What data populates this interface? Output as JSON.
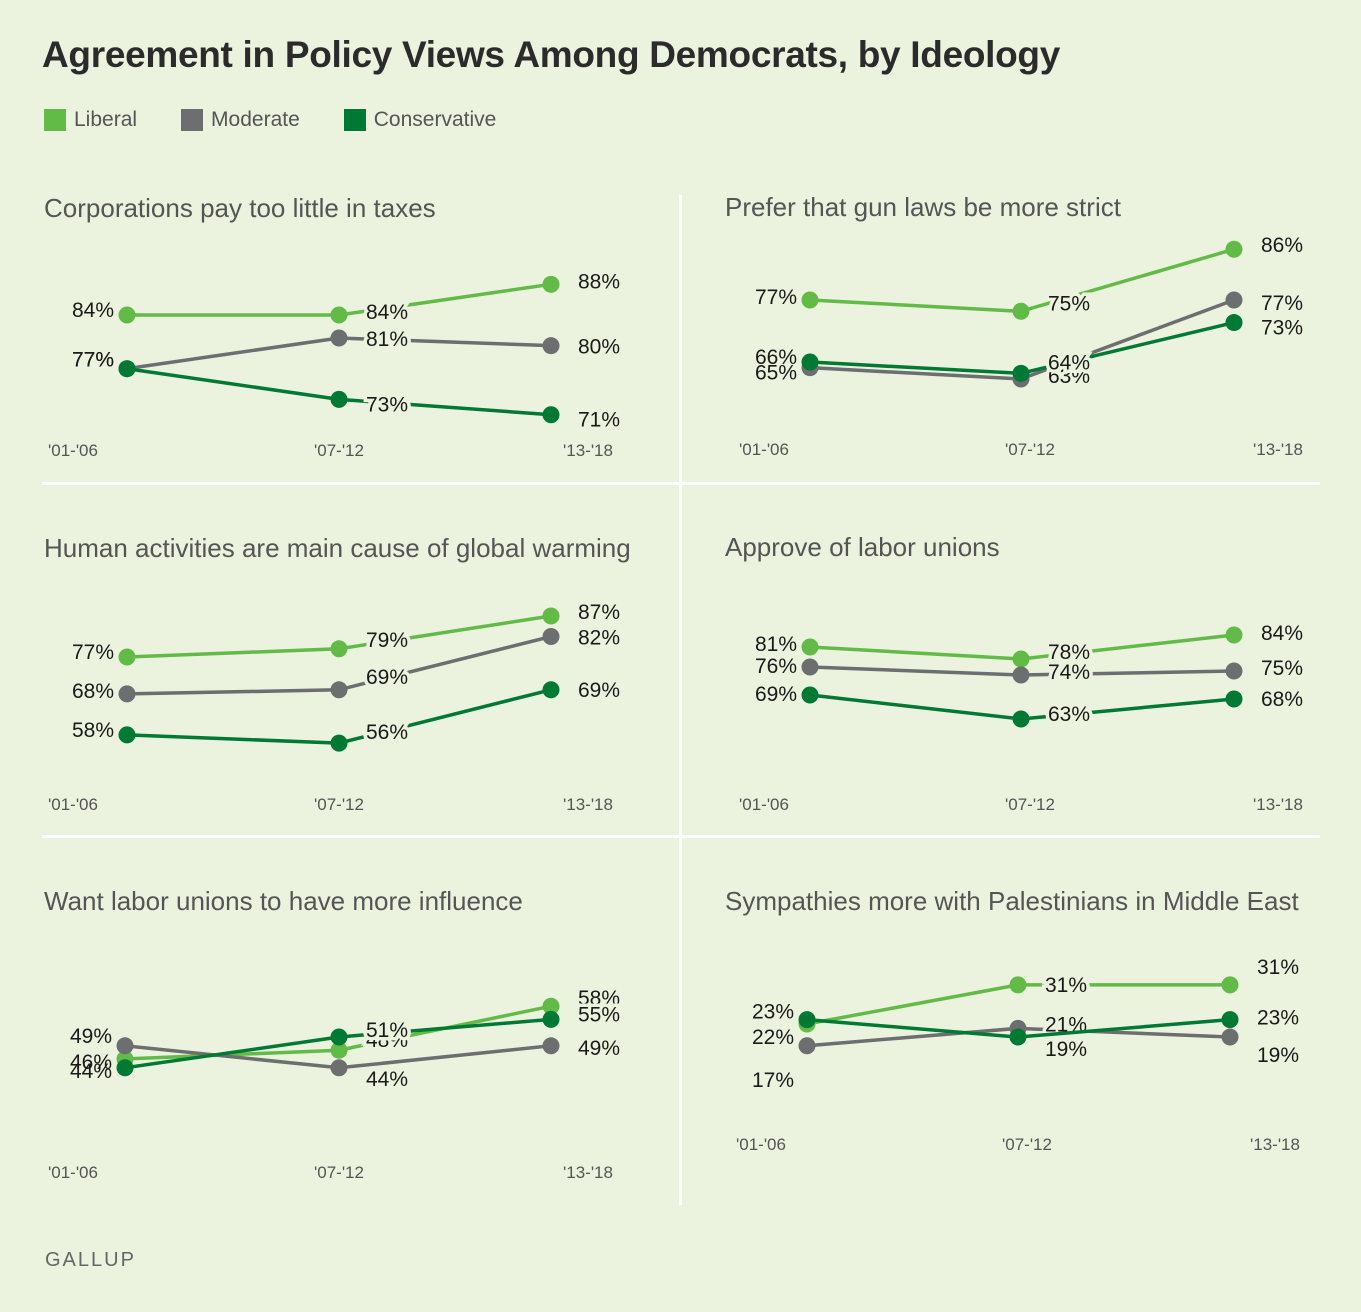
{
  "title": "Agreement in Policy Views Among Democrats, by Ideology",
  "legend": [
    {
      "label": "Liberal",
      "color": "#62bb46"
    },
    {
      "label": "Moderate",
      "color": "#6d6e70"
    },
    {
      "label": "Conservative",
      "color": "#007934"
    }
  ],
  "footer": "GALLUP",
  "chart_data": [
    {
      "type": "line",
      "title": "Corporations pay too little in taxes",
      "categories": [
        "'01-'06",
        "'07-'12",
        "'13-'18"
      ],
      "series": [
        {
          "name": "Liberal",
          "values": [
            84,
            84,
            88
          ]
        },
        {
          "name": "Moderate",
          "values": [
            77,
            81,
            80
          ]
        },
        {
          "name": "Conservative",
          "values": [
            77,
            73,
            71
          ]
        }
      ]
    },
    {
      "type": "line",
      "title": "Prefer that gun laws be more strict",
      "categories": [
        "'01-'06",
        "'07-'12",
        "'13-'18"
      ],
      "series": [
        {
          "name": "Liberal",
          "values": [
            77,
            75,
            86
          ]
        },
        {
          "name": "Moderate",
          "values": [
            65,
            63,
            77
          ]
        },
        {
          "name": "Conservative",
          "values": [
            66,
            64,
            73
          ]
        }
      ]
    },
    {
      "type": "line",
      "title": "Human activities are main cause of global warming",
      "categories": [
        "'01-'06",
        "'07-'12",
        "'13-'18"
      ],
      "series": [
        {
          "name": "Liberal",
          "values": [
            77,
            79,
            87
          ]
        },
        {
          "name": "Moderate",
          "values": [
            68,
            69,
            82
          ]
        },
        {
          "name": "Conservative",
          "values": [
            58,
            56,
            69
          ]
        }
      ]
    },
    {
      "type": "line",
      "title": "Approve of labor unions",
      "categories": [
        "'01-'06",
        "'07-'12",
        "'13-'18"
      ],
      "series": [
        {
          "name": "Liberal",
          "values": [
            81,
            78,
            84
          ]
        },
        {
          "name": "Moderate",
          "values": [
            76,
            74,
            75
          ]
        },
        {
          "name": "Conservative",
          "values": [
            69,
            63,
            68
          ]
        }
      ]
    },
    {
      "type": "line",
      "title": "Want labor unions to have more influence",
      "categories": [
        "'01-'06",
        "'07-'12",
        "'13-'18"
      ],
      "series": [
        {
          "name": "Liberal",
          "values": [
            46,
            48,
            58
          ]
        },
        {
          "name": "Moderate",
          "values": [
            49,
            44,
            49
          ]
        },
        {
          "name": "Conservative",
          "values": [
            44,
            51,
            55
          ]
        }
      ]
    },
    {
      "type": "line",
      "title": "Sympathies more with Palestinians in Middle East",
      "categories": [
        "'01-'06",
        "'07-'12",
        "'13-'18"
      ],
      "series": [
        {
          "name": "Liberal",
          "values": [
            22,
            31,
            31
          ]
        },
        {
          "name": "Moderate",
          "values": [
            17,
            21,
            19
          ]
        },
        {
          "name": "Conservative",
          "values": [
            23,
            19,
            23
          ]
        }
      ]
    }
  ]
}
